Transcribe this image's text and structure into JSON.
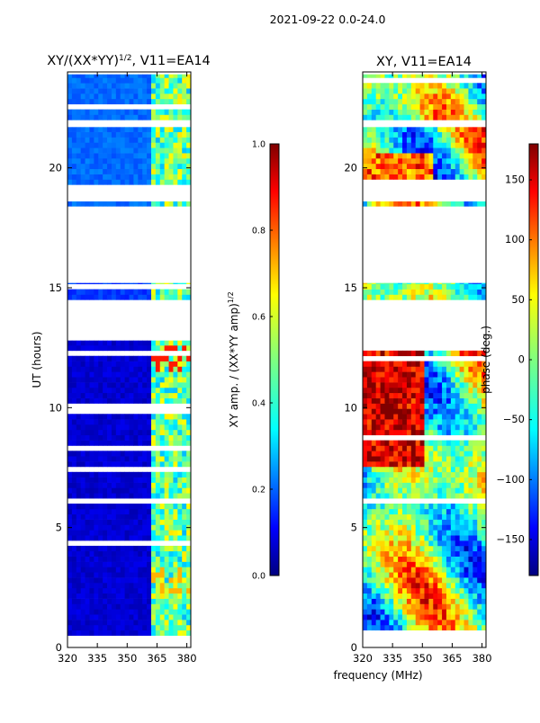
{
  "figure": {
    "suptitle": "2021-09-22 0.0-24.0",
    "shared_xlabel": "frequency (MHz)"
  },
  "colors": {
    "jet_dark_blue": "#00007f",
    "jet_blue": "#0000ff",
    "jet_cyan": "#00ffff",
    "jet_green": "#7fff7f",
    "jet_yellow": "#ffff00",
    "jet_red": "#ff0000",
    "jet_dark_red": "#7f0000"
  },
  "chart_data": [
    {
      "type": "heatmap",
      "title_main": "XY/(XX*YY)",
      "title_sup": "1/2",
      "title_tail": ", V11=EA14",
      "ylabel": "UT (hours)",
      "xlim": [
        320,
        382
      ],
      "ylim": [
        0,
        24
      ],
      "xticks": [
        320,
        335,
        350,
        365,
        380
      ],
      "yticks": [
        0,
        5,
        10,
        15,
        20
      ],
      "colorbar": {
        "label_main": "XY amp. / (XX*YY amp)",
        "label_sup": "1/2",
        "range": [
          0.0,
          1.0
        ],
        "ticks": [
          "0.0",
          "0.2",
          "0.4",
          "0.6",
          "0.8",
          "1.0"
        ]
      },
      "data_blocks": [
        {
          "t0": 0.5,
          "t1": 12.8,
          "level": 0.05
        },
        {
          "t0": 14.5,
          "t1": 15.2,
          "level": 0.15
        },
        {
          "t0": 18.4,
          "t1": 18.6,
          "level": 0.2
        },
        {
          "t0": 19.3,
          "t1": 21.7,
          "level": 0.2
        },
        {
          "t0": 22.0,
          "t1": 23.9,
          "level": 0.2
        }
      ],
      "bright_band_mhz": [
        361,
        382
      ]
    },
    {
      "type": "heatmap",
      "title_main": "XY, V11=EA14",
      "ylabel": "",
      "xlim": [
        320,
        382
      ],
      "ylim": [
        0,
        24
      ],
      "xticks": [
        320,
        335,
        350,
        365,
        380
      ],
      "yticks": [
        0,
        5,
        10,
        15,
        20
      ],
      "colorbar": {
        "label_main": "phase (deg.)",
        "range": [
          -180,
          180
        ],
        "ticks": [
          "150",
          "100",
          "50",
          "0",
          "−50",
          "−100",
          "−150"
        ]
      },
      "data_blocks": [
        {
          "t0": 0.5,
          "t1": 12.8
        },
        {
          "t0": 14.5,
          "t1": 15.2
        },
        {
          "t0": 18.4,
          "t1": 18.6
        },
        {
          "t0": 19.3,
          "t1": 21.7
        },
        {
          "t0": 22.0,
          "t1": 23.9
        }
      ]
    }
  ]
}
